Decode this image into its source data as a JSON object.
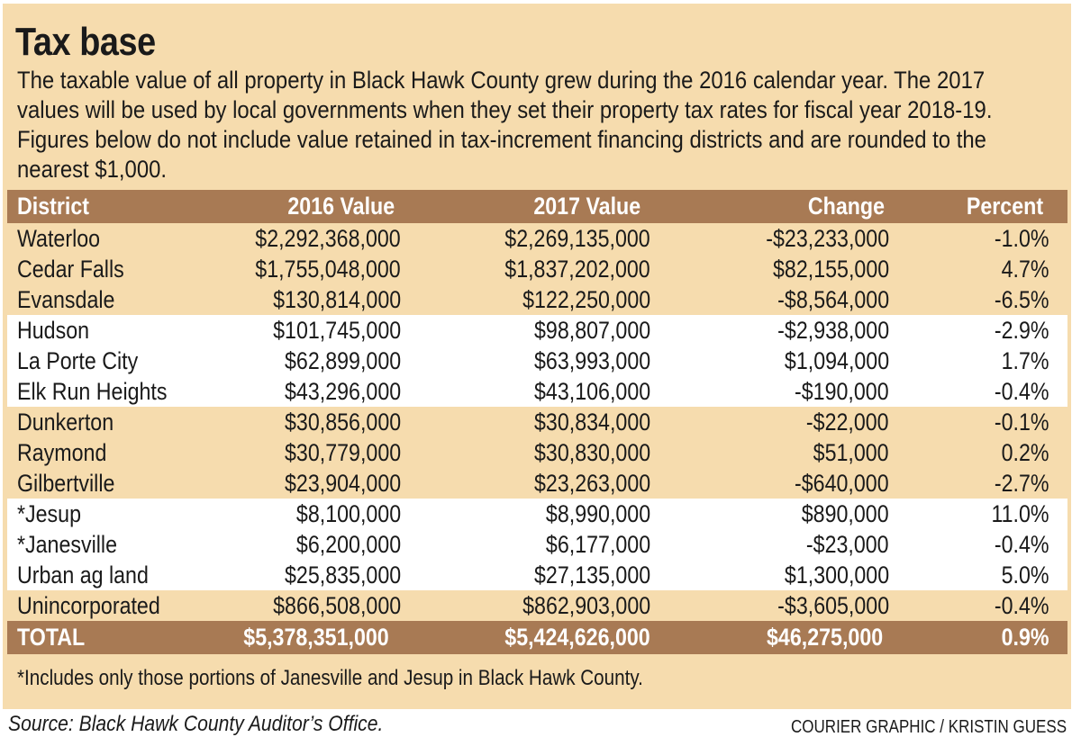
{
  "chart_data": {
    "type": "table",
    "title": "Tax base",
    "subtitle": "The taxable value of all property in Black Hawk County grew during the 2016 calendar year. The 2017 values will be used by local governments when they set their property tax rates for fiscal year 2018-19. Figures below do not include value retained in tax-increment financing districts and are rounded to the nearest $1,000.",
    "columns": [
      "District",
      "2016 Value",
      "2017 Value",
      "Change",
      "Percent"
    ],
    "rows": [
      [
        "Waterloo",
        "$2,292,368,000",
        "$2,269,135,000",
        "-$23,233,000",
        "-1.0%"
      ],
      [
        "Cedar Falls",
        "$1,755,048,000",
        "$1,837,202,000",
        "$82,155,000",
        "4.7%"
      ],
      [
        "Evansdale",
        "$130,814,000",
        "$122,250,000",
        "-$8,564,000",
        "-6.5%"
      ],
      [
        "Hudson",
        "$101,745,000",
        "$98,807,000",
        "-$2,938,000",
        "-2.9%"
      ],
      [
        "La Porte City",
        "$62,899,000",
        "$63,993,000",
        "$1,094,000",
        "1.7%"
      ],
      [
        "Elk Run Heights",
        "$43,296,000",
        "$43,106,000",
        "-$190,000",
        "-0.4%"
      ],
      [
        "Dunkerton",
        "$30,856,000",
        "$30,834,000",
        "-$22,000",
        "-0.1%"
      ],
      [
        "Raymond",
        "$30,779,000",
        "$30,830,000",
        "$51,000",
        "0.2%"
      ],
      [
        "Gilbertville",
        "$23,904,000",
        "$23,263,000",
        "-$640,000",
        "-2.7%"
      ],
      [
        "*Jesup",
        "$8,100,000",
        "$8,990,000",
        "$890,000",
        "11.0%"
      ],
      [
        "*Janesville",
        "$6,200,000",
        "$6,177,000",
        "-$23,000",
        "-0.4%"
      ],
      [
        "Urban ag land",
        "$25,835,000",
        "$27,135,000",
        "$1,300,000",
        "5.0%"
      ],
      [
        "Unincorporated",
        "$866,508,000",
        "$862,903,000",
        "-$3,605,000",
        "-0.4%"
      ]
    ],
    "total": [
      "TOTAL",
      "$5,378,351,000",
      "$5,424,626,000",
      "$46,275,000",
      "0.9%"
    ],
    "footnote": "*Includes only those portions of Janesville and Jesup in Black Hawk County.",
    "source": "Source: Black Hawk County Auditor’s Office.",
    "credit": "COURIER GRAPHIC / KRISTIN GUESS",
    "colors": {
      "panel": "#f6dcae",
      "header": "#a87a54",
      "band_alt": "#ffffff",
      "text": "#1a1a1a"
    }
  }
}
